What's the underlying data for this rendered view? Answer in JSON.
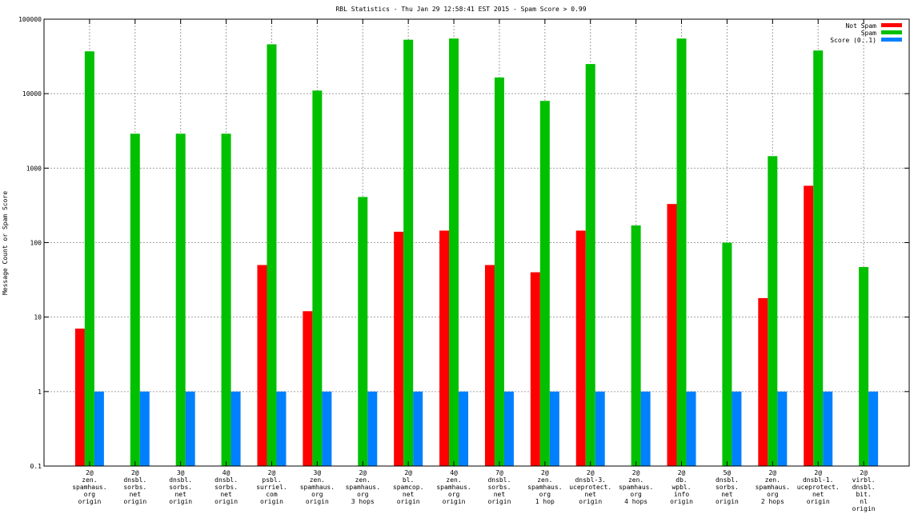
{
  "chart_data": {
    "type": "bar",
    "title": "RBL Statistics - Thu Jan 29 12:58:41 EST 2015 - Spam Score > 0.99",
    "ylabel": "Message Count or Spam Score",
    "xlabel": "",
    "yscale": "log",
    "ylim": [
      0.1,
      100000
    ],
    "grid": true,
    "legend_position": "top-right",
    "yticks": [
      "0.1",
      "1",
      "10",
      "100",
      "1000",
      "10000",
      "100000"
    ],
    "categories": [
      [
        "2@",
        "zen.",
        "spamhaus.",
        "org",
        "origin"
      ],
      [
        "2@",
        "dnsbl.",
        "sorbs.",
        "net",
        "origin"
      ],
      [
        "3@",
        "dnsbl.",
        "sorbs.",
        "net",
        "origin"
      ],
      [
        "4@",
        "dnsbl.",
        "sorbs.",
        "net",
        "origin"
      ],
      [
        "2@",
        "psbl.",
        "surriel.",
        "com",
        "origin"
      ],
      [
        "3@",
        "zen.",
        "spamhaus.",
        "org",
        "origin"
      ],
      [
        "2@",
        "zen.",
        "spamhaus.",
        "org",
        "3 hops"
      ],
      [
        "2@",
        "bl.",
        "spamcop.",
        "net",
        "origin"
      ],
      [
        "4@",
        "zen.",
        "spamhaus.",
        "org",
        "origin"
      ],
      [
        "7@",
        "dnsbl.",
        "sorbs.",
        "net",
        "origin"
      ],
      [
        "2@",
        "zen.",
        "spamhaus.",
        "org",
        "1 hop"
      ],
      [
        "2@",
        "dnsbl-3.",
        "uceprotect.",
        "net",
        "origin"
      ],
      [
        "2@",
        "zen.",
        "spamhaus.",
        "org",
        "4 hops"
      ],
      [
        "2@",
        "db.",
        "wpbl.",
        "info",
        "origin"
      ],
      [
        "5@",
        "dnsbl.",
        "sorbs.",
        "net",
        "origin"
      ],
      [
        "2@",
        "zen.",
        "spamhaus.",
        "org",
        "2 hops"
      ],
      [
        "2@",
        "dnsbl-1.",
        "uceprotect.",
        "net",
        "origin"
      ],
      [
        "2@",
        "virbl.",
        "dnsbl.",
        "bit.",
        "nl",
        "origin"
      ]
    ],
    "series": [
      {
        "name": "Not Spam",
        "color": "#ff0000",
        "values": [
          7,
          0,
          0,
          0,
          50,
          12,
          0,
          140,
          145,
          50,
          40,
          145,
          0,
          330,
          0,
          18,
          580,
          0
        ]
      },
      {
        "name": "Spam",
        "color": "#00c000",
        "values": [
          37000,
          2900,
          2900,
          2900,
          46000,
          11000,
          410,
          53000,
          55000,
          16500,
          8000,
          25000,
          170,
          55000,
          100,
          1450,
          38000,
          47
        ]
      },
      {
        "name": "Score (0..1)",
        "color": "#0080ff",
        "values": [
          1,
          1,
          1,
          1,
          1,
          1,
          1,
          1,
          1,
          1,
          1,
          1,
          1,
          1,
          1,
          1,
          1,
          1
        ]
      }
    ]
  }
}
